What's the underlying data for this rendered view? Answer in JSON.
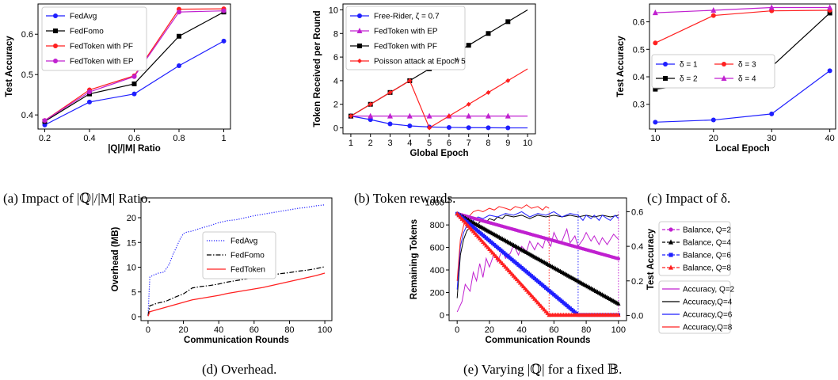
{
  "chart_data": [
    {
      "id": "a",
      "type": "line",
      "caption": "(a) Impact of |ℚ|/|M| Ratio.",
      "xlabel": "|Q|/|M| Ratio",
      "ylabel": "Test Accuracy",
      "xlim": [
        0.17,
        1.03
      ],
      "ylim": [
        0.365,
        0.675
      ],
      "xticks": [
        0.2,
        0.4,
        0.6,
        0.8,
        1.0
      ],
      "xticklabels": [
        "0.2",
        "0.4",
        "0.6",
        "0.8",
        "1"
      ],
      "yticks": [
        0.4,
        0.5,
        0.6
      ],
      "yticklabels": [
        "0.4",
        "0.5",
        "0.6"
      ],
      "legend": "top-left",
      "x": [
        0.2,
        0.4,
        0.6,
        0.8,
        1.0
      ],
      "series": [
        {
          "name": "FedAvg",
          "color": "#1f1fff",
          "marker": "circle",
          "values": [
            0.375,
            0.432,
            0.452,
            0.522,
            0.583
          ]
        },
        {
          "name": "FedFomo",
          "color": "#000000",
          "marker": "square",
          "values": [
            0.384,
            0.452,
            0.477,
            0.595,
            0.655
          ]
        },
        {
          "name": "FedToken with PF",
          "color": "#ff2020",
          "marker": "circle",
          "values": [
            0.386,
            0.462,
            0.497,
            0.662,
            0.663
          ]
        },
        {
          "name": "FedToken with EP",
          "color": "#c020d0",
          "marker": "circle",
          "values": [
            0.386,
            0.457,
            0.495,
            0.655,
            0.658
          ]
        }
      ]
    },
    {
      "id": "b",
      "type": "line",
      "caption": "(b) Token rewards.",
      "xlabel": "Global Epoch",
      "ylabel": "Token Received per Round",
      "xlim": [
        0.6,
        10.4
      ],
      "ylim": [
        -0.5,
        10.5
      ],
      "xticks": [
        1,
        2,
        3,
        4,
        5,
        6,
        7,
        8,
        9,
        10
      ],
      "xticklabels": [
        "1",
        "2",
        "3",
        "4",
        "5",
        "6",
        "7",
        "8",
        "9",
        "10"
      ],
      "yticks": [
        0,
        2,
        4,
        6,
        8,
        10
      ],
      "yticklabels": [
        "0",
        "2",
        "4",
        "6",
        "8",
        "10"
      ],
      "legend": "top-left",
      "series": [
        {
          "name": "Free-Rider, ζ = 0.7",
          "color": "#1f1fff",
          "marker": "circle",
          "x": [
            1,
            2,
            3,
            4,
            5,
            6,
            7,
            8,
            9,
            10
          ],
          "values": [
            1.0,
            0.7,
            0.34,
            0.17,
            0.08,
            0.04,
            0.02,
            0.01,
            0.0,
            0.0
          ],
          "markers_until": 9
        },
        {
          "name": "FedToken with EP",
          "color": "#c020d0",
          "marker": "triangle",
          "x": [
            1,
            2,
            3,
            4,
            5,
            6,
            7,
            8,
            9,
            10
          ],
          "values": [
            1,
            1,
            1,
            1,
            1,
            1,
            1,
            1,
            1,
            1
          ],
          "markers_until": 9
        },
        {
          "name": "FedToken with PF",
          "color": "#000000",
          "marker": "square",
          "x": [
            1,
            2,
            3,
            4,
            5,
            6,
            7,
            8,
            9,
            10
          ],
          "values": [
            1,
            2,
            3,
            4,
            5,
            6,
            7,
            8,
            9,
            10
          ],
          "markers_until": 9
        },
        {
          "name": "Poisson attack at Epoch 5",
          "name_sup": "th",
          "color": "#ff2020",
          "marker": "diamond",
          "x": [
            1,
            2,
            3,
            4,
            5,
            6,
            7,
            8,
            9,
            10
          ],
          "values": [
            1,
            2,
            3,
            4,
            0,
            1,
            2,
            3,
            4,
            5
          ],
          "markers_until": 9
        }
      ]
    },
    {
      "id": "c",
      "type": "line",
      "caption": "(c) Impact of δ.",
      "xlabel": "Local Epoch",
      "ylabel": "Test Accuracy",
      "xlim": [
        9.0,
        41.0
      ],
      "ylim": [
        0.21,
        0.665
      ],
      "xticks": [
        10,
        20,
        30,
        40
      ],
      "xticklabels": [
        "10",
        "20",
        "30",
        "40"
      ],
      "yticks": [
        0.3,
        0.4,
        0.5,
        0.6
      ],
      "yticklabels": [
        "0.3",
        "0.4",
        "0.5",
        "0.6"
      ],
      "legend": "center-left",
      "legend_cols": 2,
      "x": [
        10,
        20,
        30,
        40
      ],
      "series": [
        {
          "name": "δ = 1",
          "color": "#1f1fff",
          "marker": "circle",
          "values": [
            0.235,
            0.243,
            0.265,
            0.422
          ]
        },
        {
          "name": "δ = 2",
          "color": "#000000",
          "marker": "square",
          "values": [
            0.355,
            0.383,
            0.437,
            0.632
          ]
        },
        {
          "name": "δ = 3",
          "color": "#ff2020",
          "marker": "circle",
          "values": [
            0.523,
            0.623,
            0.64,
            0.642
          ]
        },
        {
          "name": "δ = 4",
          "color": "#c020d0",
          "marker": "triangle",
          "values": [
            0.633,
            0.642,
            0.652,
            0.652
          ]
        }
      ]
    },
    {
      "id": "d",
      "type": "line",
      "caption": "(d) Overhead.",
      "xlabel": "Communication Rounds",
      "ylabel": "Overhead (MB)",
      "xlim": [
        -4,
        104
      ],
      "ylim": [
        -0.8,
        24.0
      ],
      "xticks": [
        0,
        20,
        40,
        60,
        80,
        100
      ],
      "xticklabels": [
        "0",
        "20",
        "40",
        "60",
        "80",
        "100"
      ],
      "yticks": [
        0,
        5,
        10,
        15,
        20
      ],
      "yticklabels": [
        "0",
        "5",
        "10",
        "15",
        "20"
      ],
      "legend": "center-right",
      "series": [
        {
          "name": "FedAvg",
          "color": "#1f1fff",
          "dash": "dotted",
          "x": [
            0,
            1,
            3,
            6,
            9,
            12,
            14,
            16,
            18,
            20,
            22,
            25,
            30,
            35,
            40,
            45,
            50,
            55,
            60,
            65,
            70,
            75,
            80,
            85,
            90,
            95,
            100
          ],
          "values": [
            0.2,
            8.0,
            8.4,
            8.8,
            9.0,
            10.6,
            12.5,
            14.0,
            15.6,
            16.8,
            17.1,
            17.3,
            17.9,
            18.4,
            19.0,
            19.4,
            19.6,
            20.0,
            20.4,
            20.7,
            21.0,
            21.3,
            21.6,
            21.9,
            22.1,
            22.4,
            22.6
          ]
        },
        {
          "name": "FedFomo",
          "color": "#000000",
          "dash": "dashdot",
          "x": [
            0,
            1,
            5,
            10,
            15,
            20,
            25,
            30,
            35,
            40,
            45,
            50,
            55,
            60,
            65,
            70,
            75,
            80,
            85,
            90,
            95,
            100
          ],
          "values": [
            0.2,
            2.2,
            2.7,
            3.1,
            3.9,
            4.6,
            5.8,
            6.1,
            6.3,
            6.6,
            7.0,
            7.3,
            7.6,
            7.9,
            8.1,
            8.4,
            8.7,
            8.9,
            9.2,
            9.4,
            9.7,
            10.1
          ]
        },
        {
          "name": "FedToken",
          "color": "#ff2020",
          "dash": "solid",
          "x": [
            0,
            1,
            5,
            10,
            15,
            20,
            25,
            30,
            35,
            40,
            45,
            50,
            55,
            60,
            65,
            70,
            75,
            80,
            85,
            90,
            95,
            100
          ],
          "values": [
            0.1,
            1.0,
            1.4,
            1.9,
            2.4,
            2.9,
            3.4,
            3.7,
            4.0,
            4.3,
            4.7,
            5.0,
            5.3,
            5.6,
            5.9,
            6.3,
            6.7,
            7.1,
            7.5,
            7.9,
            8.3,
            8.8
          ]
        }
      ]
    },
    {
      "id": "e",
      "type": "line",
      "caption": "(e) Varying |ℚ| for a fixed 𝔹.",
      "xlabel": "Communication Rounds",
      "ylabel": "Remaining Tokens",
      "ylabel_right": "Test Accuracy",
      "xlim": [
        -5,
        105
      ],
      "ylim": [
        -50,
        1040
      ],
      "ylim_right": [
        -0.03,
        0.68
      ],
      "xticks": [
        0,
        20,
        40,
        60,
        80,
        100
      ],
      "xticklabels": [
        "0",
        "20",
        "40",
        "60",
        "80",
        "100"
      ],
      "yticks": [
        0,
        200,
        400,
        600,
        800,
        1000
      ],
      "yticklabels": [
        "0",
        "200",
        "400",
        "600",
        "800",
        "1000"
      ],
      "yticks_right": [
        0.0,
        0.2,
        0.4,
        0.6
      ],
      "yticklabels_right": [
        "0.0",
        "0.2",
        "0.4",
        "0.6"
      ],
      "legend": "right, outside",
      "balance_series": [
        {
          "name": "Balance, Q=2",
          "color": "#c020d0",
          "marker": "circle",
          "x": [
            0,
            100
          ],
          "values": [
            900,
            500
          ]
        },
        {
          "name": "Balance, Q=4",
          "color": "#000000",
          "marker": "triangle",
          "x": [
            0,
            100
          ],
          "values": [
            900,
            100
          ]
        },
        {
          "name": "Balance, Q=6",
          "color": "#1f1fff",
          "marker": "square",
          "x": [
            0,
            75,
            100
          ],
          "values": [
            900,
            0,
            0
          ]
        },
        {
          "name": "Balance, Q=8",
          "color": "#ff2020",
          "marker": "triangle",
          "x": [
            0,
            57,
            100
          ],
          "values": [
            900,
            0,
            0
          ]
        }
      ],
      "accuracy_series": [
        {
          "name": "Accuracy, Q=2",
          "color": "#c020d0",
          "x": [
            0,
            3,
            5,
            8,
            10,
            12,
            14,
            16,
            18,
            20,
            23,
            25,
            28,
            30,
            33,
            35,
            38,
            40,
            43,
            45,
            48,
            50,
            53,
            55,
            58,
            60,
            63,
            65,
            68,
            70,
            73,
            75,
            78,
            80,
            83,
            85,
            88,
            90,
            93,
            95,
            97,
            100
          ],
          "values": [
            0.02,
            0.08,
            0.18,
            0.14,
            0.25,
            0.2,
            0.3,
            0.22,
            0.33,
            0.28,
            0.36,
            0.31,
            0.38,
            0.33,
            0.36,
            0.41,
            0.35,
            0.4,
            0.37,
            0.43,
            0.38,
            0.42,
            0.39,
            0.45,
            0.4,
            0.48,
            0.42,
            0.43,
            0.5,
            0.42,
            0.46,
            0.4,
            0.44,
            0.48,
            0.43,
            0.46,
            0.41,
            0.45,
            0.41,
            0.44,
            0.47,
            0.44
          ]
        },
        {
          "name": "Accuracy,Q=4",
          "color": "#000000",
          "x": [
            0,
            2,
            4,
            6,
            8,
            10,
            12,
            15,
            18,
            20,
            23,
            25,
            28,
            30,
            35,
            40,
            45,
            50,
            55,
            60,
            65,
            70,
            75,
            80,
            85,
            90,
            95,
            100
          ],
          "values": [
            0.1,
            0.35,
            0.44,
            0.49,
            0.51,
            0.53,
            0.52,
            0.55,
            0.54,
            0.56,
            0.55,
            0.57,
            0.56,
            0.58,
            0.57,
            0.58,
            0.56,
            0.58,
            0.57,
            0.58,
            0.57,
            0.58,
            0.57,
            0.58,
            0.57,
            0.58,
            0.57,
            0.58
          ]
        },
        {
          "name": "Accuracy,Q=6",
          "color": "#1f1fff",
          "x": [
            0,
            2,
            4,
            6,
            8,
            10,
            13,
            16,
            20,
            25,
            30,
            35,
            40,
            45,
            50,
            55,
            60,
            65,
            70,
            75,
            78,
            80,
            83,
            85,
            88,
            90,
            93,
            95,
            98,
            100
          ],
          "values": [
            0.15,
            0.4,
            0.48,
            0.52,
            0.54,
            0.55,
            0.57,
            0.56,
            0.58,
            0.57,
            0.59,
            0.58,
            0.6,
            0.57,
            0.59,
            0.58,
            0.6,
            0.57,
            0.59,
            0.58,
            0.55,
            0.58,
            0.56,
            0.58,
            0.55,
            0.58,
            0.56,
            0.55,
            0.58,
            0.56
          ]
        },
        {
          "name": "Accuracy,Q=8",
          "color": "#ff2020",
          "x": [
            0,
            2,
            4,
            6,
            8,
            10,
            13,
            16,
            20,
            23,
            26,
            30,
            33,
            36,
            40,
            43,
            46,
            50,
            53,
            55,
            57
          ],
          "values": [
            0.2,
            0.44,
            0.52,
            0.56,
            0.58,
            0.6,
            0.61,
            0.6,
            0.62,
            0.61,
            0.63,
            0.62,
            0.61,
            0.63,
            0.62,
            0.64,
            0.62,
            0.63,
            0.61,
            0.63,
            0.62
          ]
        }
      ],
      "vlines_x": [
        57,
        75,
        100
      ]
    }
  ]
}
